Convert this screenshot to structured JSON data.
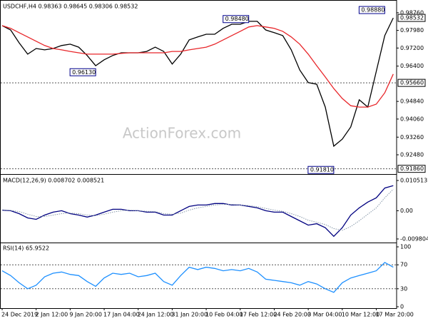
{
  "chart_data": [
    {
      "type": "line",
      "title": "USDCHF,H4 0.98363 0.98645 0.98306 0.98532",
      "watermark": "ActionForex.com",
      "series": [
        {
          "color": "#000000",
          "values": [
            0.9819,
            0.98,
            0.9743,
            0.9693,
            0.9718,
            0.9712,
            0.9718,
            0.9731,
            0.9737,
            0.9724,
            0.9687,
            0.9642,
            0.9668,
            0.9687,
            0.9699,
            0.9699,
            0.9699,
            0.9705,
            0.9724,
            0.9705,
            0.9649,
            0.9693,
            0.9756,
            0.9769,
            0.9781,
            0.9781,
            0.9807,
            0.9825,
            0.9825,
            0.9838,
            0.9838,
            0.98,
            0.9788,
            0.9775,
            0.9712,
            0.9623,
            0.9567,
            0.956,
            0.9459,
            0.9286,
            0.9317,
            0.9371,
            0.9491,
            0.9459,
            0.9617,
            0.9775,
            0.9853
          ]
        },
        {
          "color": "#e8262a",
          "values": [
            0.9819,
            0.9807,
            0.9788,
            0.9769,
            0.975,
            0.9731,
            0.9718,
            0.9712,
            0.9705,
            0.9699,
            0.9693,
            0.9693,
            0.9693,
            0.9693,
            0.9696,
            0.9699,
            0.9699,
            0.9699,
            0.9699,
            0.9699,
            0.9705,
            0.9705,
            0.9712,
            0.9718,
            0.9724,
            0.9737,
            0.9756,
            0.9775,
            0.9794,
            0.9813,
            0.9819,
            0.9813,
            0.9807,
            0.9794,
            0.9769,
            0.9737,
            0.9693,
            0.9642,
            0.9592,
            0.9541,
            0.9497,
            0.9465,
            0.9459,
            0.9459,
            0.9472,
            0.9522,
            0.9605
          ]
        }
      ],
      "ylim": [
        0.9166,
        0.9926
      ],
      "yticks": [
        {
          "value": 0.9876,
          "label": "0.98760"
        },
        {
          "value": 0.9798,
          "label": "0.97980"
        },
        {
          "value": 0.972,
          "label": "0.97200"
        },
        {
          "value": 0.964,
          "label": "0.96400"
        },
        {
          "value": 0.9484,
          "label": "0.94840"
        },
        {
          "value": 0.9406,
          "label": "0.94060"
        },
        {
          "value": 0.9326,
          "label": "0.93260"
        },
        {
          "value": 0.9248,
          "label": "0.92480"
        }
      ],
      "last_price": {
        "value": 0.98532,
        "label": "0.98532"
      },
      "levels": [
        {
          "value": 0.9566,
          "label": "0.95660"
        },
        {
          "value": 0.9186,
          "label": "0.91860"
        }
      ],
      "annotations": [
        {
          "index": 45,
          "value": 0.9888,
          "label": "0.98880"
        },
        {
          "index": 29,
          "value": 0.9848,
          "label": "0.98480"
        },
        {
          "index": 11,
          "value": 0.9613,
          "label": "0.96130"
        },
        {
          "index": 39,
          "value": 0.9181,
          "label": "0.91810"
        }
      ]
    },
    {
      "type": "line",
      "title": "MACD(12,26,9) 0.008702 0.008521",
      "series": [
        {
          "color": "#000080",
          "style": "solid",
          "values": [
            0.0002,
            0,
            -0.001,
            -0.0025,
            -0.003,
            -0.0015,
            -0.0005,
            0,
            -0.001,
            -0.0015,
            -0.0022,
            -0.0015,
            -0.0005,
            0.0005,
            0.0005,
            0,
            0,
            -0.0005,
            -0.0005,
            -0.0015,
            -0.0015,
            0,
            0.0015,
            0.002,
            0.002,
            0.0025,
            0.0025,
            0.002,
            0.002,
            0.0015,
            0.001,
            0,
            -0.0005,
            -0.0005,
            -0.002,
            -0.0035,
            -0.005,
            -0.0045,
            -0.0059,
            -0.0089,
            -0.0059,
            -0.0015,
            0.001,
            0.003,
            0.0045,
            0.0079,
            0.0087
          ]
        },
        {
          "color": "#8899aa",
          "style": "dotted",
          "values": [
            0.0003,
            0.0001,
            -0.0003,
            -0.0012,
            -0.002,
            -0.002,
            -0.0015,
            -0.001,
            -0.0008,
            -0.001,
            -0.0015,
            -0.0017,
            -0.0012,
            -0.0005,
            0,
            0.0002,
            0,
            -0.0002,
            -0.0003,
            -0.001,
            -0.0012,
            -0.0008,
            0.0002,
            0.001,
            0.0015,
            0.002,
            0.0022,
            0.0022,
            0.002,
            0.0018,
            0.0014,
            0.0008,
            0.0002,
            -0.0002,
            -0.001,
            -0.002,
            -0.0033,
            -0.004,
            -0.0048,
            -0.0062,
            -0.0068,
            -0.0055,
            -0.0035,
            -0.0012,
            0.001,
            0.0045,
            0.0075
          ]
        }
      ],
      "ylim": [
        -0.0108,
        0.01225
      ],
      "yticks": [
        0.010513,
        {
          "value": 0,
          "label": "0.00"
        },
        -0.009804
      ]
    },
    {
      "type": "line",
      "title": "RSI(14) 65.9522",
      "categories": [
        "24 Dec 2019",
        null,
        null,
        null,
        "2 Jan 12:00",
        null,
        null,
        null,
        "9 Jan 20:00",
        null,
        null,
        null,
        "17 Jan 04:00",
        null,
        null,
        null,
        "24 Jan 12:00",
        null,
        null,
        null,
        "31 Jan 20:00",
        null,
        null,
        null,
        "10 Feb 04:00",
        null,
        null,
        null,
        "17 Feb 12:00",
        null,
        null,
        null,
        "24 Feb 20:00",
        null,
        null,
        null,
        "3 Mar 04:00",
        null,
        null,
        null,
        "10 Mar 12:00",
        null,
        null,
        null,
        "17 Mar 20:00",
        null,
        null
      ],
      "series": [
        {
          "color": "#1e90ff",
          "style": "solid",
          "values": [
            60,
            52,
            40,
            30,
            36,
            50,
            56,
            58,
            54,
            52,
            42,
            34,
            48,
            56,
            54,
            56,
            50,
            52,
            56,
            42,
            36,
            52,
            66,
            62,
            66,
            64,
            60,
            62,
            60,
            64,
            58,
            46,
            44,
            42,
            40,
            36,
            42,
            38,
            30,
            24,
            40,
            48,
            52,
            56,
            60,
            74,
            66
          ]
        }
      ],
      "ylim": [
        -2.4,
        106
      ],
      "yticks": [
        0,
        30,
        70,
        100
      ],
      "levels": [
        30,
        70
      ]
    }
  ]
}
